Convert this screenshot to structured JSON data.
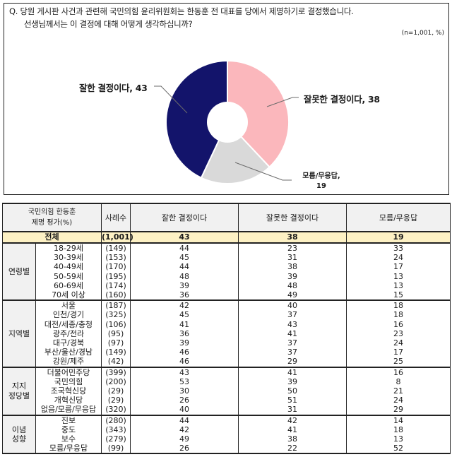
{
  "question": {
    "line1": "Q. 당원 게시판 사건과 관련해 국민의힘 윤리위원회는 한동훈 전 대표를 당에서 제명하기로 결정했습니다.",
    "line2": "선생님께서는 이 결정에 대해 어떻게 생각하십니까?",
    "sample_note": "(n=1,001, %)"
  },
  "chart_data": {
    "type": "pie",
    "title": "당원 게시판 사건과 관련해 국민의힘 윤리위원회는 한동훈 전 대표를 당에서 제명하기로 결정했습니다. 선생님께서는 이 결정에 대해 어떻게 생각하십니까?",
    "note": "(n=1,001, %)",
    "donut": true,
    "categories": [
      "잘한 결정이다",
      "잘못한 결정이다",
      "모름/무응답"
    ],
    "values": [
      43,
      38,
      19
    ],
    "colors": [
      "#13146b",
      "#fbb7bc",
      "#d9d9d9"
    ],
    "labels": [
      "잘한 결정이다, 43",
      "잘못한 결정이다, 38",
      "모름/무응답,",
      "19"
    ],
    "table": {
      "header": [
        "국민의힘 한동훈 제명 평가(%)",
        "사례수",
        "잘한 결정이다",
        "잘못한 결정이다",
        "모름/무응답"
      ],
      "total": {
        "label": "전체",
        "n": "(1,001)",
        "values": [
          43,
          38,
          19
        ]
      },
      "groups": [
        {
          "name": "연령별",
          "rows": [
            {
              "label": "18-29세",
              "n": "(149)",
              "values": [
                44,
                23,
                33
              ]
            },
            {
              "label": "30-39세",
              "n": "(153)",
              "values": [
                45,
                31,
                24
              ]
            },
            {
              "label": "40-49세",
              "n": "(170)",
              "values": [
                44,
                38,
                17
              ]
            },
            {
              "label": "50-59세",
              "n": "(195)",
              "values": [
                48,
                39,
                13
              ]
            },
            {
              "label": "60-69세",
              "n": "(174)",
              "values": [
                39,
                48,
                13
              ]
            },
            {
              "label": "70세 이상",
              "n": "(160)",
              "values": [
                36,
                49,
                15
              ]
            }
          ]
        },
        {
          "name": "지역별",
          "rows": [
            {
              "label": "서울",
              "n": "(187)",
              "values": [
                42,
                40,
                18
              ]
            },
            {
              "label": "인천/경기",
              "n": "(325)",
              "values": [
                45,
                37,
                18
              ]
            },
            {
              "label": "대전/세종/충청",
              "n": "(106)",
              "values": [
                41,
                43,
                16
              ]
            },
            {
              "label": "광주/전라",
              "n": "(95)",
              "values": [
                36,
                41,
                23
              ]
            },
            {
              "label": "대구/경북",
              "n": "(97)",
              "values": [
                39,
                37,
                24
              ]
            },
            {
              "label": "부산/울산/경남",
              "n": "(149)",
              "values": [
                46,
                37,
                17
              ]
            },
            {
              "label": "강원/제주",
              "n": "(42)",
              "values": [
                46,
                29,
                25
              ]
            }
          ]
        },
        {
          "name": "지지 정당별",
          "rows": [
            {
              "label": "더불어민주당",
              "n": "(399)",
              "values": [
                43,
                41,
                16
              ]
            },
            {
              "label": "국민의힘",
              "n": "(200)",
              "values": [
                53,
                39,
                8
              ]
            },
            {
              "label": "조국혁신당",
              "n": "(29)",
              "values": [
                30,
                50,
                21
              ]
            },
            {
              "label": "개혁신당",
              "n": "(29)",
              "values": [
                26,
                51,
                24
              ]
            },
            {
              "label": "없음/모름/무응답",
              "n": "(320)",
              "values": [
                40,
                31,
                29
              ]
            }
          ]
        },
        {
          "name": "이념 성향",
          "rows": [
            {
              "label": "진보",
              "n": "(280)",
              "values": [
                44,
                42,
                14
              ]
            },
            {
              "label": "중도",
              "n": "(343)",
              "values": [
                42,
                41,
                18
              ]
            },
            {
              "label": "보수",
              "n": "(279)",
              "values": [
                49,
                38,
                13
              ]
            },
            {
              "label": "모름/무응답",
              "n": "(99)",
              "values": [
                26,
                22,
                52
              ]
            }
          ]
        }
      ]
    }
  },
  "table": {
    "header": {
      "group_title_line1": "국민의힘 한동훈",
      "group_title_line2": "제명 평가(%)",
      "n": "사례수",
      "col1": "잘한 결정이다",
      "col2": "잘못한 결정이다",
      "col3": "모름/무응답"
    },
    "total": {
      "label": "전체",
      "n": "(1,001)",
      "v1": "43",
      "v2": "38",
      "v3": "19"
    },
    "groups": [
      {
        "name_line1": "연령별",
        "name_line2": "",
        "rows": [
          {
            "label": "18-29세",
            "n": "(149)",
            "v1": "44",
            "v2": "23",
            "v3": "33"
          },
          {
            "label": "30-39세",
            "n": "(153)",
            "v1": "45",
            "v2": "31",
            "v3": "24"
          },
          {
            "label": "40-49세",
            "n": "(170)",
            "v1": "44",
            "v2": "38",
            "v3": "17"
          },
          {
            "label": "50-59세",
            "n": "(195)",
            "v1": "48",
            "v2": "39",
            "v3": "13"
          },
          {
            "label": "60-69세",
            "n": "(174)",
            "v1": "39",
            "v2": "48",
            "v3": "13"
          },
          {
            "label": "70세  이상",
            "n": "(160)",
            "v1": "36",
            "v2": "49",
            "v3": "15"
          }
        ]
      },
      {
        "name_line1": "지역별",
        "name_line2": "",
        "rows": [
          {
            "label": "서울",
            "n": "(187)",
            "v1": "42",
            "v2": "40",
            "v3": "18"
          },
          {
            "label": "인천/경기",
            "n": "(325)",
            "v1": "45",
            "v2": "37",
            "v3": "18"
          },
          {
            "label": "대전/세종/충청",
            "n": "(106)",
            "v1": "41",
            "v2": "43",
            "v3": "16"
          },
          {
            "label": "광주/전라",
            "n": "(95)",
            "v1": "36",
            "v2": "41",
            "v3": "23"
          },
          {
            "label": "대구/경북",
            "n": "(97)",
            "v1": "39",
            "v2": "37",
            "v3": "24"
          },
          {
            "label": "부산/울산/경남",
            "n": "(149)",
            "v1": "46",
            "v2": "37",
            "v3": "17"
          },
          {
            "label": "강원/제주",
            "n": "(42)",
            "v1": "46",
            "v2": "29",
            "v3": "25"
          }
        ]
      },
      {
        "name_line1": "지지",
        "name_line2": "정당별",
        "rows": [
          {
            "label": "더불어민주당",
            "n": "(399)",
            "v1": "43",
            "v2": "41",
            "v3": "16"
          },
          {
            "label": "국민의힘",
            "n": "(200)",
            "v1": "53",
            "v2": "39",
            "v3": "8"
          },
          {
            "label": "조국혁신당",
            "n": "(29)",
            "v1": "30",
            "v2": "50",
            "v3": "21"
          },
          {
            "label": "개혁신당",
            "n": "(29)",
            "v1": "26",
            "v2": "51",
            "v3": "24"
          },
          {
            "label": "없음/모름/무응답",
            "n": "(320)",
            "v1": "40",
            "v2": "31",
            "v3": "29"
          }
        ]
      },
      {
        "name_line1": "이념",
        "name_line2": "성향",
        "rows": [
          {
            "label": "진보",
            "n": "(280)",
            "v1": "44",
            "v2": "42",
            "v3": "14"
          },
          {
            "label": "중도",
            "n": "(343)",
            "v1": "42",
            "v2": "41",
            "v3": "18"
          },
          {
            "label": "보수",
            "n": "(279)",
            "v1": "49",
            "v2": "38",
            "v3": "13"
          },
          {
            "label": "모름/무응답",
            "n": "(99)",
            "v1": "26",
            "v2": "22",
            "v3": "52"
          }
        ]
      }
    ]
  }
}
